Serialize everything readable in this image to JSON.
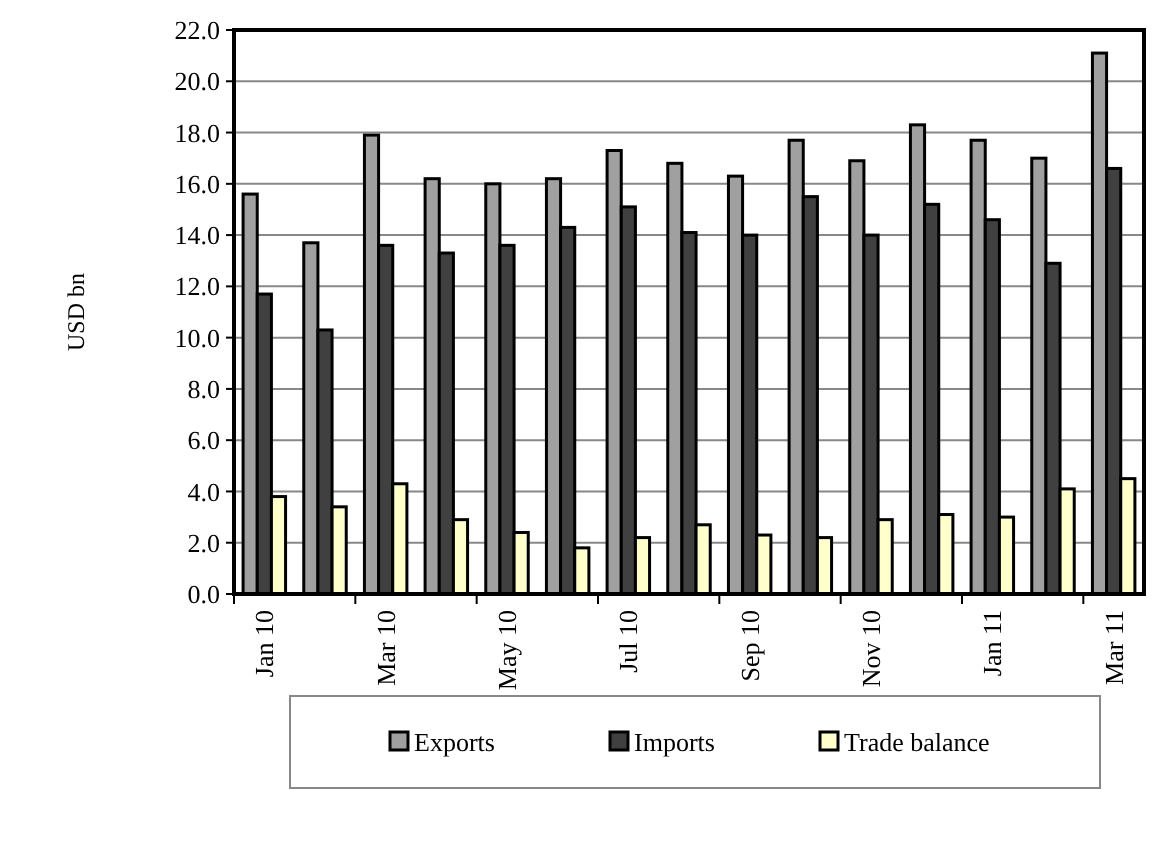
{
  "chart_data": {
    "type": "bar",
    "ylabel": "USD bn",
    "categories": [
      "Jan 10",
      null,
      "Mar 10",
      null,
      "May 10",
      null,
      "Jul 10",
      null,
      "Sep 10",
      null,
      "Nov 10",
      null,
      "Jan 11",
      null,
      "Mar 11"
    ],
    "series": [
      {
        "name": "Exports",
        "color": "#a0a0a0",
        "values": [
          15.6,
          13.7,
          17.9,
          16.2,
          16.0,
          16.2,
          17.3,
          16.8,
          16.3,
          17.7,
          16.9,
          18.3,
          17.7,
          17.0,
          21.1
        ]
      },
      {
        "name": "Imports",
        "color": "#404040",
        "values": [
          11.7,
          10.3,
          13.6,
          13.3,
          13.6,
          14.3,
          15.1,
          14.1,
          14.0,
          15.5,
          14.0,
          15.2,
          14.6,
          12.9,
          16.6
        ]
      },
      {
        "name": "Trade balance",
        "color": "#ffffcc",
        "values": [
          3.8,
          3.4,
          4.3,
          2.9,
          2.4,
          1.8,
          2.2,
          2.7,
          2.3,
          2.2,
          2.9,
          3.1,
          3.0,
          4.1,
          4.5
        ]
      }
    ],
    "ylim": [
      0,
      22
    ],
    "yticks": [
      {
        "value": 0,
        "label": "0.0"
      },
      {
        "value": 2,
        "label": "2.0"
      },
      {
        "value": 4,
        "label": "4.0"
      },
      {
        "value": 6,
        "label": "6.0"
      },
      {
        "value": 8,
        "label": "8.0"
      },
      {
        "value": 10,
        "label": "10.0"
      },
      {
        "value": 12,
        "label": "12.0"
      },
      {
        "value": 14,
        "label": "14.0"
      },
      {
        "value": 16,
        "label": "16.0"
      },
      {
        "value": 18,
        "label": "18.0"
      },
      {
        "value": 20,
        "label": "20.0"
      },
      {
        "value": 22,
        "label": "22.0"
      }
    ],
    "grid": "y",
    "legend": "bottom"
  }
}
